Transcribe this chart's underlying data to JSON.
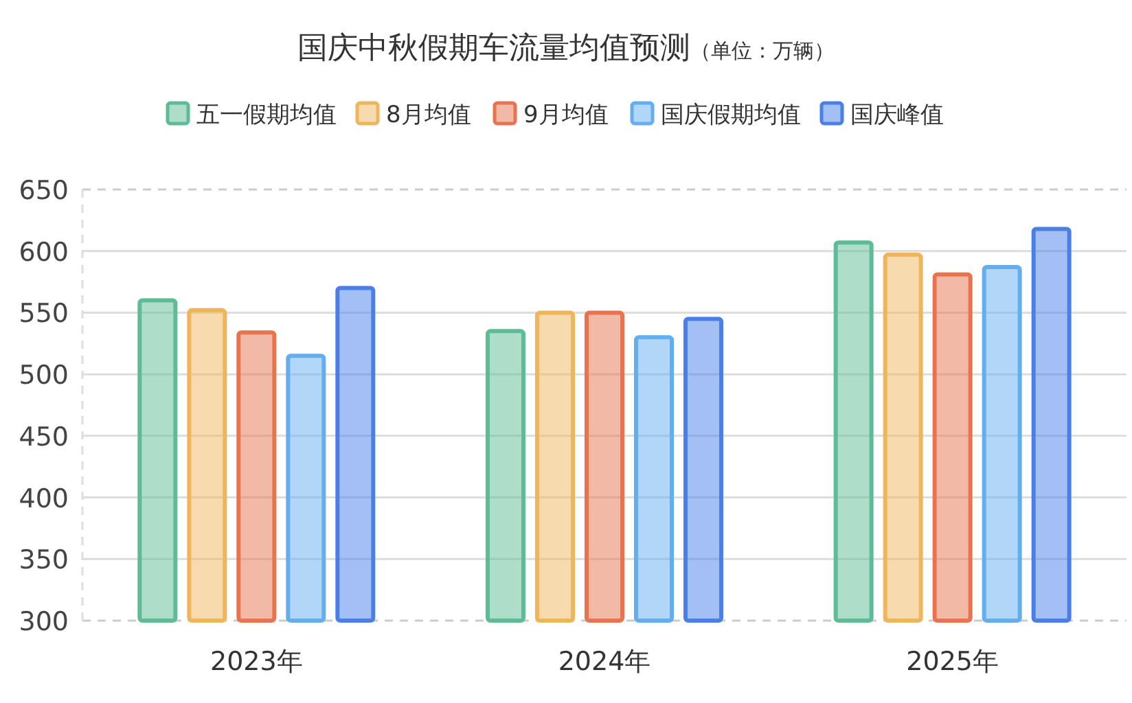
{
  "chart_data": {
    "type": "bar",
    "title": "国庆中秋假期车流量均值预测",
    "subtitle": "（单位：万辆）",
    "categories": [
      "2023年",
      "2024年",
      "2025年"
    ],
    "series": [
      {
        "name": "五一假期均值",
        "color": "#5dbb95",
        "values": [
          560,
          535,
          607
        ]
      },
      {
        "name": "8月均值",
        "color": "#f0b55c",
        "values": [
          552,
          550,
          597
        ]
      },
      {
        "name": "9月均值",
        "color": "#e8734f",
        "values": [
          534,
          550,
          581
        ]
      },
      {
        "name": "国庆假期均值",
        "color": "#64aef0",
        "values": [
          515,
          530,
          587
        ]
      },
      {
        "name": "国庆峰值",
        "color": "#4a7fe8",
        "values": [
          570,
          545,
          618
        ]
      }
    ],
    "ylim": [
      300,
      650
    ],
    "yticks": [
      300,
      350,
      400,
      450,
      500,
      550,
      600,
      650
    ],
    "grid": "y",
    "legend": "top"
  }
}
